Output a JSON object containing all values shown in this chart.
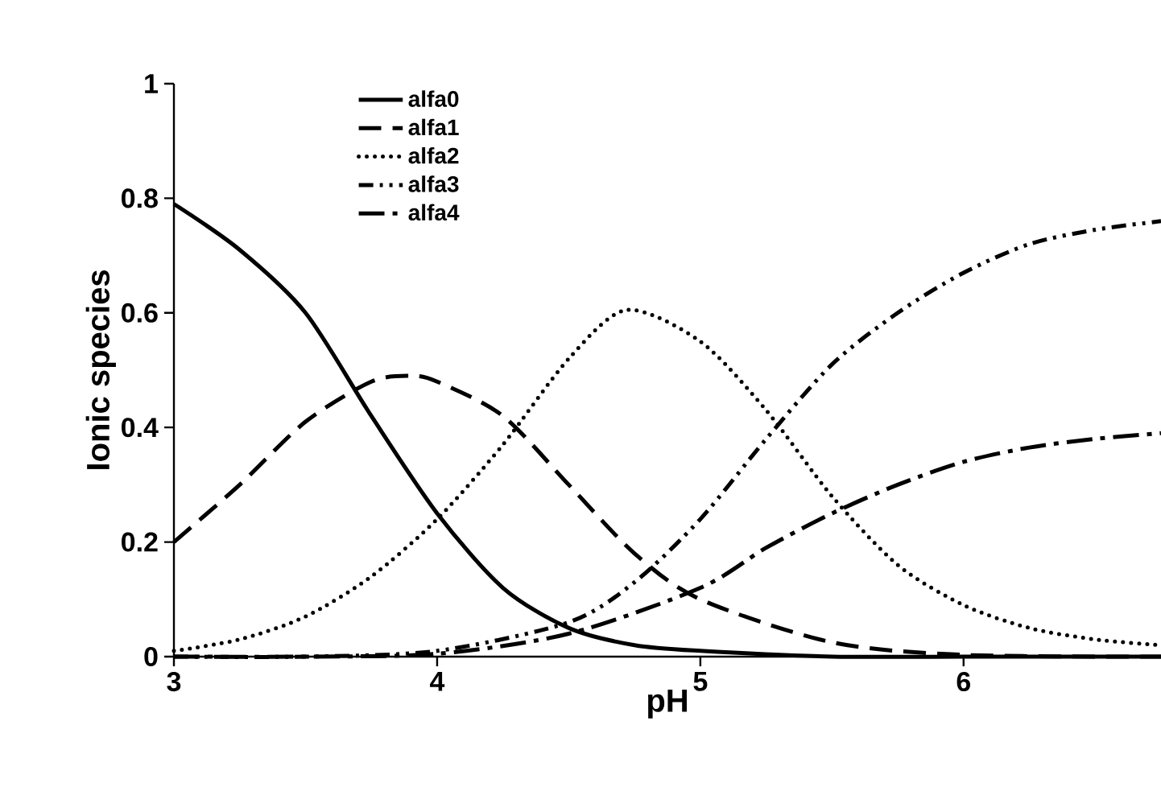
{
  "chart_data": {
    "type": "line",
    "xlabel": "pH",
    "ylabel": "Ionic species",
    "xlim": [
      3,
      6.75
    ],
    "ylim": [
      0,
      1
    ],
    "xticks": [
      3,
      4,
      5,
      6
    ],
    "yticks": [
      0,
      0.2,
      0.4,
      0.6,
      0.8,
      1
    ],
    "legend": "top left",
    "grid": false,
    "marker": "none",
    "series": [
      {
        "name": "alfa0",
        "color": "#000000",
        "line_style": "solid",
        "x": [
          3,
          3.25,
          3.5,
          3.75,
          4,
          4.25,
          4.5,
          4.75,
          5,
          5.5,
          6,
          6.75
        ],
        "values": [
          0.79,
          0.71,
          0.6,
          0.42,
          0.25,
          0.12,
          0.05,
          0.02,
          0.01,
          0,
          0,
          0
        ]
      },
      {
        "name": "alfa1",
        "color": "#000000",
        "line_style": "dashed",
        "x": [
          3,
          3.25,
          3.5,
          3.75,
          3.9,
          4,
          4.25,
          4.5,
          4.75,
          5,
          5.5,
          6,
          6.75
        ],
        "values": [
          0.2,
          0.3,
          0.41,
          0.48,
          0.49,
          0.48,
          0.42,
          0.3,
          0.18,
          0.1,
          0.025,
          0.003,
          0
        ]
      },
      {
        "name": "alfa2",
        "color": "#000000",
        "line_style": "dotted",
        "x": [
          3,
          3.25,
          3.5,
          3.75,
          4,
          4.25,
          4.5,
          4.72,
          5,
          5.25,
          5.5,
          5.75,
          6,
          6.25,
          6.5,
          6.75
        ],
        "values": [
          0.01,
          0.03,
          0.07,
          0.14,
          0.24,
          0.37,
          0.52,
          0.605,
          0.55,
          0.43,
          0.28,
          0.16,
          0.09,
          0.05,
          0.03,
          0.02
        ]
      },
      {
        "name": "alfa3",
        "color": "#000000",
        "line_style": "dashdotdotted",
        "x": [
          3,
          3.5,
          4,
          4.5,
          4.75,
          5,
          5.25,
          5.5,
          5.75,
          6,
          6.25,
          6.5,
          6.75
        ],
        "values": [
          0,
          0,
          0.01,
          0.06,
          0.13,
          0.24,
          0.38,
          0.51,
          0.6,
          0.67,
          0.72,
          0.745,
          0.76
        ]
      },
      {
        "name": "alfa4",
        "color": "#000000",
        "line_style": "dashdotted",
        "x": [
          3,
          3.5,
          4,
          4.5,
          5,
          5.25,
          5.5,
          5.75,
          6,
          6.25,
          6.5,
          6.75
        ],
        "values": [
          0,
          0,
          0.005,
          0.04,
          0.12,
          0.19,
          0.25,
          0.3,
          0.34,
          0.365,
          0.38,
          0.39
        ]
      }
    ]
  }
}
